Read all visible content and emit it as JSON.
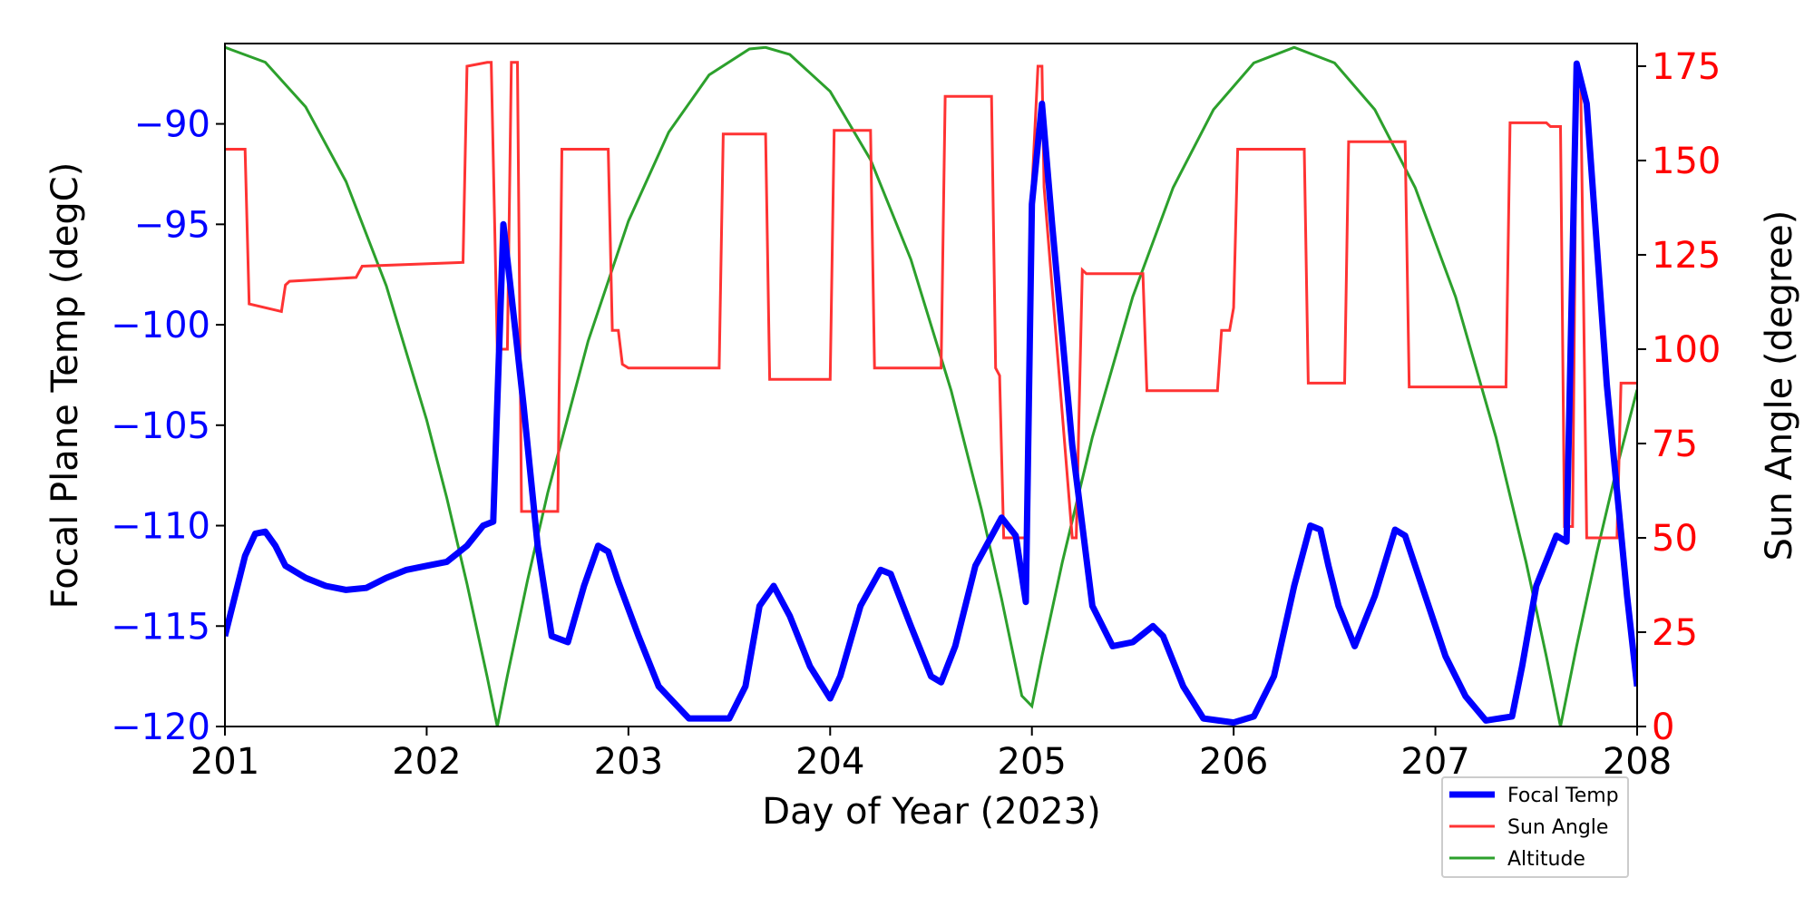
{
  "chart_data": {
    "type": "line",
    "xlabel": "Day of Year (2023)",
    "ylabel_left": "Focal Plane Temp (degC)",
    "ylabel_right": "Sun Angle (degree)",
    "xlim": [
      201,
      208
    ],
    "ylim_left": [
      -120,
      -86
    ],
    "ylim_right": [
      0,
      181
    ],
    "x_ticks": [
      201,
      202,
      203,
      204,
      205,
      206,
      207,
      208
    ],
    "y_left_ticks": [
      -90,
      -95,
      -100,
      -105,
      -110,
      -115,
      -120
    ],
    "y_right_ticks": [
      175,
      150,
      125,
      100,
      75,
      50,
      25,
      0
    ],
    "grid": false,
    "legend_position": "bottom-right",
    "colors": {
      "left_axis": "#0000ff",
      "right_axis": "#ff0000",
      "focal": "#0000ff",
      "sun": "#ff3333",
      "altitude": "#2ca02c"
    },
    "series": [
      {
        "name": "Focal Temp",
        "axis": "left",
        "x": [
          201.0,
          201.05,
          201.1,
          201.15,
          201.2,
          201.25,
          201.3,
          201.4,
          201.5,
          201.6,
          201.7,
          201.8,
          201.9,
          202.0,
          202.1,
          202.2,
          202.28,
          202.33,
          202.38,
          202.42,
          202.48,
          202.55,
          202.62,
          202.7,
          202.78,
          202.85,
          202.9,
          202.95,
          203.05,
          203.15,
          203.3,
          203.5,
          203.58,
          203.65,
          203.72,
          203.8,
          203.9,
          204.0,
          204.05,
          204.15,
          204.25,
          204.3,
          204.4,
          204.5,
          204.55,
          204.62,
          204.72,
          204.85,
          204.92,
          204.97,
          205.0,
          205.05,
          205.1,
          205.2,
          205.3,
          205.4,
          205.5,
          205.6,
          205.65,
          205.75,
          205.85,
          206.0,
          206.1,
          206.2,
          206.3,
          206.38,
          206.43,
          206.47,
          206.52,
          206.6,
          206.7,
          206.8,
          206.85,
          206.95,
          207.05,
          207.15,
          207.25,
          207.38,
          207.43,
          207.5,
          207.6,
          207.65,
          207.7,
          207.75,
          207.85,
          207.95,
          208.0
        ],
        "y": [
          -115.5,
          -113.5,
          -111.5,
          -110.4,
          -110.3,
          -111.0,
          -112.0,
          -112.6,
          -113.0,
          -113.2,
          -113.1,
          -112.6,
          -112.2,
          -112.0,
          -111.8,
          -111.0,
          -110.0,
          -109.8,
          -95.0,
          -98.5,
          -104.0,
          -111.0,
          -115.5,
          -115.8,
          -113.0,
          -111.0,
          -111.3,
          -112.8,
          -115.5,
          -118.0,
          -119.6,
          -119.6,
          -118.0,
          -114.0,
          -113.0,
          -114.5,
          -117.0,
          -118.6,
          -117.5,
          -114.0,
          -112.2,
          -112.4,
          -115.0,
          -117.5,
          -117.8,
          -116.0,
          -112.0,
          -109.6,
          -110.5,
          -113.8,
          -94.0,
          -89.0,
          -95.0,
          -106.0,
          -114.0,
          -116.0,
          -115.8,
          -115.0,
          -115.5,
          -118.0,
          -119.6,
          -119.8,
          -119.5,
          -117.5,
          -113.0,
          -110.0,
          -110.2,
          -112.0,
          -114.0,
          -116.0,
          -113.5,
          -110.2,
          -110.5,
          -113.5,
          -116.5,
          -118.5,
          -119.7,
          -119.5,
          -117.0,
          -113.0,
          -110.5,
          -110.8,
          -87.0,
          -89.0,
          -103.0,
          -113.5,
          -118.0
        ]
      },
      {
        "name": "Sun Angle",
        "axis": "right",
        "x": [
          201.0,
          201.1,
          201.12,
          201.28,
          201.3,
          201.32,
          201.65,
          201.68,
          202.18,
          202.2,
          202.3,
          202.32,
          202.35,
          202.4,
          202.42,
          202.45,
          202.47,
          202.65,
          202.67,
          202.9,
          202.92,
          202.95,
          202.97,
          203.0,
          203.45,
          203.47,
          203.68,
          203.7,
          204.0,
          204.02,
          204.2,
          204.22,
          204.55,
          204.57,
          204.8,
          204.82,
          204.84,
          204.86,
          204.98,
          205.0,
          205.03,
          205.05,
          205.06,
          205.2,
          205.22,
          205.25,
          205.27,
          205.55,
          205.57,
          205.92,
          205.94,
          205.98,
          206.0,
          206.02,
          206.35,
          206.37,
          206.55,
          206.57,
          206.85,
          206.87,
          207.35,
          207.37,
          207.55,
          207.57,
          207.62,
          207.64,
          207.68,
          207.7,
          207.72,
          207.75,
          207.9,
          207.92,
          208.0
        ],
        "y": [
          153,
          153,
          112,
          110,
          117,
          118,
          119,
          122,
          123,
          175,
          176,
          176,
          100,
          100,
          176,
          176,
          57,
          57,
          153,
          153,
          105,
          105,
          96,
          95,
          95,
          157,
          157,
          92,
          92,
          158,
          158,
          95,
          95,
          167,
          167,
          95,
          93,
          50,
          50,
          142,
          175,
          175,
          143,
          50,
          50,
          121,
          120,
          120,
          89,
          89,
          105,
          105,
          111,
          153,
          153,
          91,
          91,
          155,
          155,
          90,
          90,
          160,
          160,
          159,
          159,
          53,
          53,
          175,
          172,
          50,
          50,
          91,
          91
        ]
      },
      {
        "name": "Altitude",
        "axis": "right",
        "x": [
          201.0,
          201.2,
          201.4,
          201.6,
          201.8,
          202.0,
          202.1,
          202.2,
          202.3,
          202.35,
          202.4,
          202.5,
          202.6,
          202.8,
          203.0,
          203.2,
          203.4,
          203.6,
          203.68,
          203.8,
          204.0,
          204.2,
          204.4,
          204.6,
          204.75,
          204.85,
          204.95,
          205.0,
          205.05,
          205.15,
          205.3,
          205.5,
          205.7,
          205.9,
          206.1,
          206.3,
          206.5,
          206.7,
          206.9,
          207.1,
          207.3,
          207.45,
          207.55,
          207.62,
          207.7,
          207.8,
          207.9,
          208.0
        ]
      }
    ]
  }
}
